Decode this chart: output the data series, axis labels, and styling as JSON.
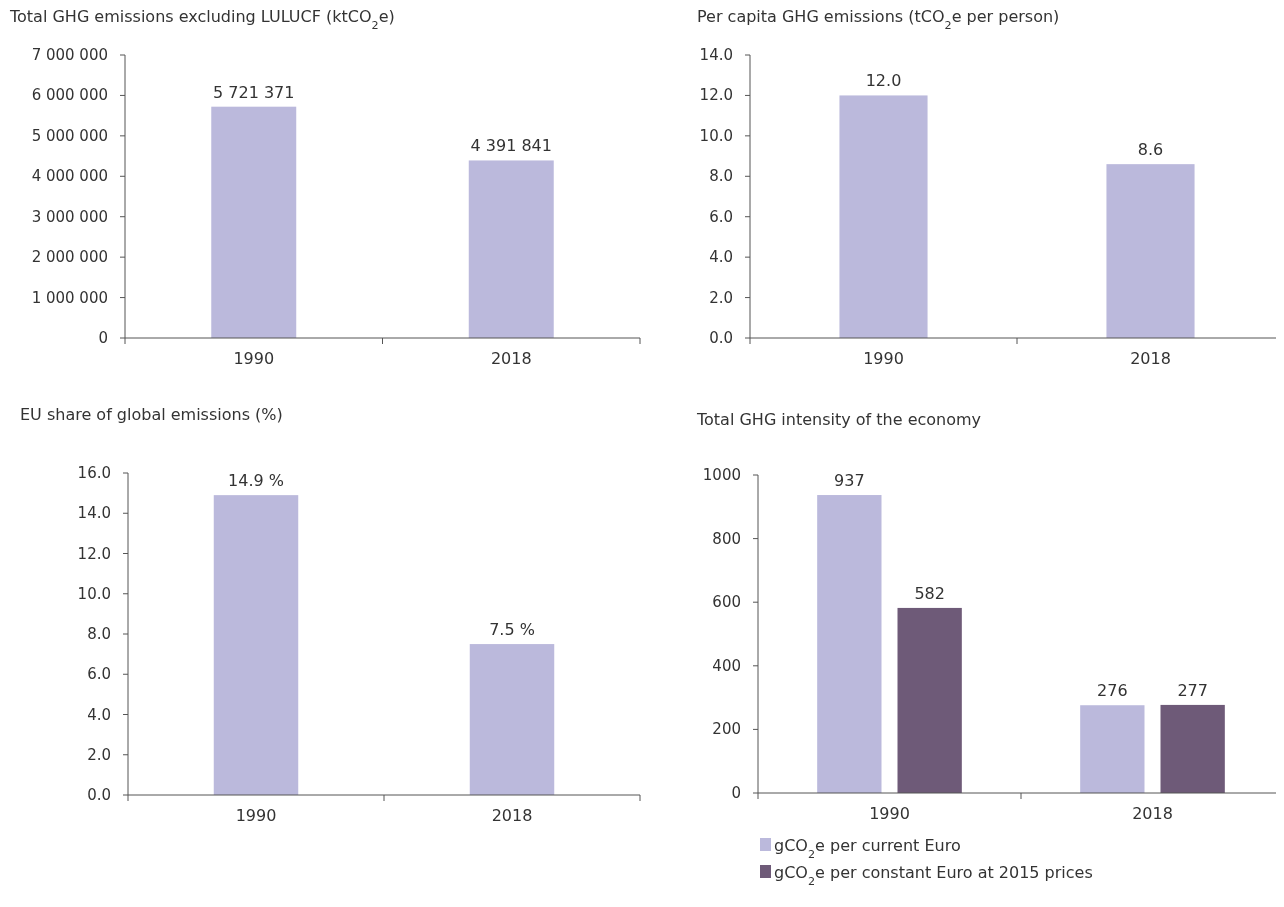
{
  "chart_data": [
    {
      "type": "bar",
      "title": "Total GHG emissions excluding LULUCF (ktCO$_{2}$e)",
      "categories": [
        "1990",
        "2018"
      ],
      "series": [
        {
          "color": "#bbb9dc",
          "values": [
            5721371,
            4391841
          ],
          "value_labels": [
            "5 721 371",
            "4 391 841"
          ]
        }
      ],
      "ylim": [
        0,
        7000000
      ],
      "yticks": [
        {
          "value": 0,
          "label": "0"
        },
        {
          "value": 1000000,
          "label": "1 000 000"
        },
        {
          "value": 2000000,
          "label": "2 000 000"
        },
        {
          "value": 3000000,
          "label": "3 000 000"
        },
        {
          "value": 4000000,
          "label": "4 000 000"
        },
        {
          "value": 5000000,
          "label": "5 000 000"
        },
        {
          "value": 6000000,
          "label": "6 000 000"
        },
        {
          "value": 7000000,
          "label": "7 000 000"
        }
      ],
      "grid": false,
      "legend": false
    },
    {
      "type": "bar",
      "title": "Per capita GHG emissions (tCO$_{2}$e per person)",
      "categories": [
        "1990",
        "2018"
      ],
      "series": [
        {
          "color": "#bbb9dc",
          "values": [
            12.0,
            8.6
          ],
          "value_labels": [
            "12.0",
            "8.6"
          ]
        }
      ],
      "ylim": [
        0,
        14
      ],
      "yticks": [
        {
          "value": 0,
          "label": "0.0"
        },
        {
          "value": 2,
          "label": "2.0"
        },
        {
          "value": 4,
          "label": "4.0"
        },
        {
          "value": 6,
          "label": "6.0"
        },
        {
          "value": 8,
          "label": "8.0"
        },
        {
          "value": 10,
          "label": "10.0"
        },
        {
          "value": 12,
          "label": "12.0"
        },
        {
          "value": 14,
          "label": "14.0"
        }
      ],
      "grid": false,
      "legend": false
    },
    {
      "type": "bar",
      "title": "EU share of global emissions (%)",
      "categories": [
        "1990",
        "2018"
      ],
      "series": [
        {
          "color": "#bbb9dc",
          "values": [
            14.9,
            7.5
          ],
          "value_labels": [
            "14.9 %",
            "7.5 %"
          ]
        }
      ],
      "ylim": [
        0,
        16
      ],
      "yticks": [
        {
          "value": 0,
          "label": "0.0"
        },
        {
          "value": 2,
          "label": "2.0"
        },
        {
          "value": 4,
          "label": "4.0"
        },
        {
          "value": 6,
          "label": "6.0"
        },
        {
          "value": 8,
          "label": "8.0"
        },
        {
          "value": 10,
          "label": "10.0"
        },
        {
          "value": 12,
          "label": "12.0"
        },
        {
          "value": 14,
          "label": "14.0"
        },
        {
          "value": 16,
          "label": "16.0"
        }
      ],
      "grid": false,
      "legend": false
    },
    {
      "type": "bar",
      "title": "Total GHG intensity of the economy",
      "categories": [
        "1990",
        "2018"
      ],
      "series": [
        {
          "name": "gCO$_{2}$e per current Euro",
          "color": "#bbb9dc",
          "values": [
            937,
            276
          ]
        },
        {
          "name": "gCO$_{2}$e per constant Euro at 2015 prices",
          "color": "#6e5a78",
          "values": [
            582,
            277
          ]
        }
      ],
      "data_labels": true,
      "ylim": [
        0,
        1000
      ],
      "yticks": [
        0,
        200,
        400,
        600,
        800,
        1000
      ],
      "grid": false,
      "legend": "bottom"
    }
  ]
}
